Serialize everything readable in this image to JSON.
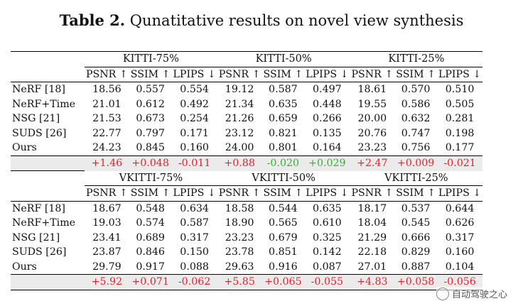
{
  "caption": {
    "label": "Table 2.",
    "text": " Qunatitative results on novel view synthesis"
  },
  "metrics": [
    "PSNR ↑",
    "SSIM ↑",
    "LPIPS ↓"
  ],
  "blocks": [
    {
      "groups": [
        "KITTI-75%",
        "KITTI-50%",
        "KITTI-25%"
      ],
      "rows": [
        {
          "method": "NeRF [18]",
          "values": [
            "18.56",
            "0.557",
            "0.554",
            "19.12",
            "0.587",
            "0.497",
            "18.61",
            "0.570",
            "0.510"
          ],
          "bold": [
            false,
            false,
            false,
            false,
            false,
            false,
            false,
            false,
            false
          ]
        },
        {
          "method": "NeRF+Time",
          "values": [
            "21.01",
            "0.612",
            "0.492",
            "21.34",
            "0.635",
            "0.448",
            "19.55",
            "0.586",
            "0.505"
          ],
          "bold": [
            false,
            false,
            false,
            false,
            false,
            false,
            false,
            false,
            false
          ]
        },
        {
          "method": "NSG [21]",
          "values": [
            "21.53",
            "0.673",
            "0.254",
            "21.26",
            "0.659",
            "0.266",
            "20.00",
            "0.632",
            "0.281"
          ],
          "bold": [
            false,
            false,
            false,
            false,
            false,
            false,
            false,
            false,
            false
          ]
        },
        {
          "method": "SUDS [26]",
          "values": [
            "22.77",
            "0.797",
            "0.171",
            "23.12",
            "0.821",
            "0.135",
            "20.76",
            "0.747",
            "0.198"
          ],
          "bold": [
            false,
            false,
            false,
            false,
            true,
            true,
            false,
            false,
            false
          ]
        },
        {
          "method": "Ours",
          "values": [
            "24.23",
            "0.845",
            "0.160",
            "24.00",
            "0.801",
            "0.164",
            "23.23",
            "0.756",
            "0.177"
          ],
          "bold": [
            true,
            true,
            true,
            true,
            false,
            false,
            true,
            true,
            true
          ]
        }
      ],
      "diff": [
        "+1.46",
        "+0.048",
        "-0.011",
        "+0.88",
        "-0.020",
        "+0.029",
        "+2.47",
        "+0.009",
        "-0.021"
      ],
      "diff_color": [
        "pos",
        "pos",
        "pos",
        "pos",
        "neg",
        "neg",
        "pos",
        "pos",
        "pos"
      ]
    },
    {
      "groups": [
        "VKITTI-75%",
        "VKITTI-50%",
        "VKITTI-25%"
      ],
      "rows": [
        {
          "method": "NeRF [18]",
          "values": [
            "18.67",
            "0.548",
            "0.634",
            "18.58",
            "0.544",
            "0.635",
            "18.17",
            "0.537",
            "0.644"
          ],
          "bold": [
            false,
            false,
            false,
            false,
            false,
            false,
            false,
            false,
            false
          ]
        },
        {
          "method": "NeRF+Time",
          "values": [
            "19.03",
            "0.574",
            "0.587",
            "18.90",
            "0.565",
            "0.610",
            "18.04",
            "0.545",
            "0.626"
          ],
          "bold": [
            false,
            false,
            false,
            false,
            false,
            false,
            false,
            false,
            false
          ]
        },
        {
          "method": "NSG [21]",
          "values": [
            "23.41",
            "0.689",
            "0.317",
            "23.23",
            "0.679",
            "0.325",
            "21.29",
            "0.666",
            "0.317"
          ],
          "bold": [
            false,
            false,
            false,
            false,
            false,
            false,
            false,
            false,
            false
          ]
        },
        {
          "method": "SUDS [26]",
          "values": [
            "23.87",
            "0.846",
            "0.150",
            "23.78",
            "0.851",
            "0.142",
            "22.18",
            "0.829",
            "0.160"
          ],
          "bold": [
            false,
            false,
            false,
            false,
            false,
            false,
            false,
            false,
            false
          ]
        },
        {
          "method": "Ours",
          "values": [
            "29.79",
            "0.917",
            "0.088",
            "29.63",
            "0.916",
            "0.087",
            "27.01",
            "0.887",
            "0.104"
          ],
          "bold": [
            true,
            true,
            true,
            true,
            true,
            true,
            true,
            true,
            true
          ]
        }
      ],
      "diff": [
        "+5.92",
        "+0.071",
        "-0.062",
        "+5.85",
        "+0.065",
        "-0.055",
        "+4.83",
        "+0.058",
        "-0.056"
      ],
      "diff_color": [
        "pos",
        "pos",
        "pos",
        "pos",
        "pos",
        "pos",
        "pos",
        "pos",
        "pos"
      ]
    }
  ],
  "watermark": "自动驾驶之心"
}
